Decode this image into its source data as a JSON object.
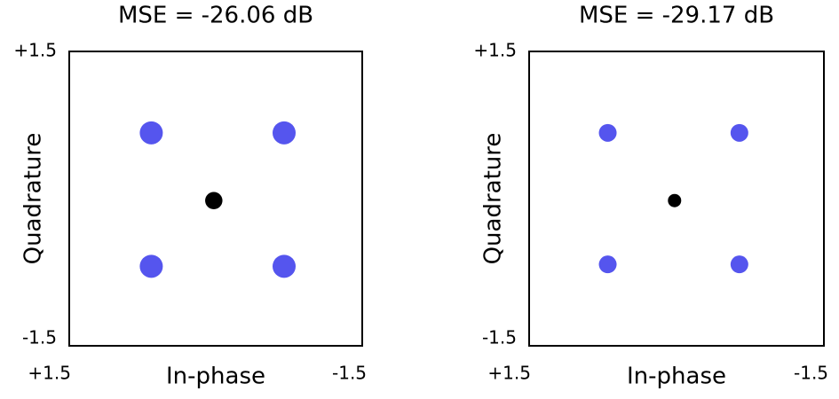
{
  "chart_data": [
    {
      "type": "scatter",
      "title": "MSE = -26.06 dB",
      "xlabel": "In-phase",
      "ylabel": "Quadrature",
      "xlim": [
        1.5,
        -1.5
      ],
      "ylim": [
        -1.5,
        1.5
      ],
      "xticks": [
        {
          "value": 1.5,
          "label": "+1.5"
        },
        -1.5
      ],
      "yticks": [
        {
          "value": 1.5,
          "label": "+1.5"
        },
        -1.5
      ],
      "x": [
        0.66,
        -0.7,
        0.66,
        -0.7,
        0.02
      ],
      "values": [
        0.67,
        0.67,
        -0.69,
        -0.69,
        -0.02
      ],
      "colors": [
        "#5555ee",
        "#5555ee",
        "#5555ee",
        "#5555ee",
        "#000000"
      ]
    },
    {
      "type": "scatter",
      "title": "MSE = -29.17 dB",
      "xlabel": "In-phase",
      "ylabel": "Quadrature",
      "xlim": [
        1.5,
        -1.5
      ],
      "ylim": [
        -1.5,
        1.5
      ],
      "xticks": [
        {
          "value": 1.5,
          "label": "+1.5"
        },
        -1.5
      ],
      "yticks": [
        {
          "value": 1.5,
          "label": "+1.5"
        },
        -1.5
      ],
      "x": [
        0.7,
        -0.64,
        0.7,
        -0.64,
        0.02
      ],
      "values": [
        0.67,
        0.67,
        -0.67,
        -0.67,
        -0.02
      ],
      "colors": [
        "#5555ee",
        "#5555ee",
        "#5555ee",
        "#5555ee",
        "#000000"
      ]
    }
  ]
}
